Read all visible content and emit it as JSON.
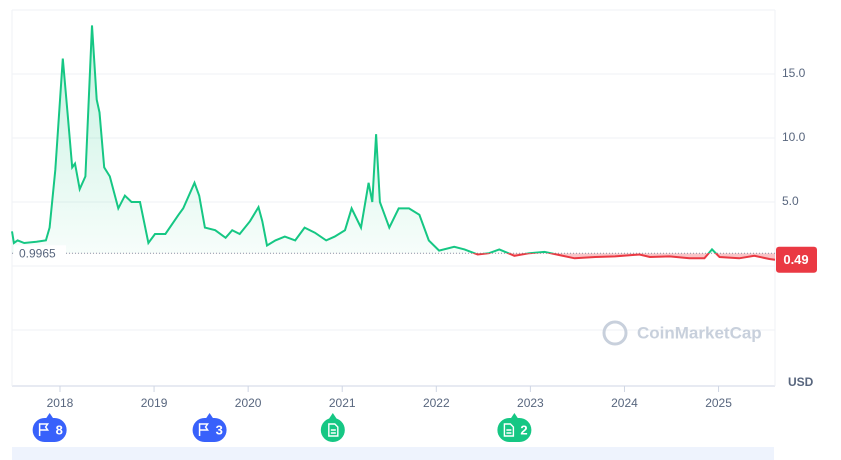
{
  "chart_data": {
    "type": "line",
    "x": [
      2017.49,
      2017.51,
      2017.55,
      2017.62,
      2017.75,
      2017.85,
      2017.89,
      2017.95,
      2018.03,
      2018.08,
      2018.13,
      2018.16,
      2018.21,
      2018.27,
      2018.34,
      2018.39,
      2018.42,
      2018.47,
      2018.53,
      2018.62,
      2018.69,
      2018.76,
      2018.85,
      2018.94,
      2019.01,
      2019.12,
      2019.26,
      2019.31,
      2019.43,
      2019.48,
      2019.54,
      2019.65,
      2019.76,
      2019.83,
      2019.91,
      2020.02,
      2020.11,
      2020.15,
      2020.2,
      2020.29,
      2020.39,
      2020.5,
      2020.6,
      2020.71,
      2020.83,
      2020.92,
      2021.03,
      2021.1,
      2021.2,
      2021.28,
      2021.32,
      2021.36,
      2021.4,
      2021.5,
      2021.6,
      2021.71,
      2021.82,
      2021.92,
      2022.03,
      2022.19,
      2022.3,
      2022.44,
      2022.56,
      2022.67,
      2022.83,
      2022.99,
      2023.15,
      2023.31,
      2023.47,
      2023.69,
      2023.9,
      2024.16,
      2024.27,
      2024.48,
      2024.69,
      2024.85,
      2024.93,
      2025.01,
      2025.22,
      2025.38,
      2025.54,
      2025.6
    ],
    "values": [
      2.7,
      1.8,
      2.0,
      1.8,
      1.9,
      2.0,
      3.0,
      7.5,
      16.2,
      12.0,
      7.7,
      8.0,
      6.0,
      7.0,
      18.8,
      13.0,
      12.0,
      7.7,
      7.0,
      4.5,
      5.5,
      5.0,
      5.0,
      1.8,
      2.5,
      2.5,
      4.0,
      4.5,
      6.5,
      5.5,
      3.0,
      2.8,
      2.2,
      2.8,
      2.5,
      3.5,
      4.6,
      3.5,
      1.6,
      2.0,
      2.3,
      2.0,
      3.0,
      2.6,
      2.0,
      2.3,
      2.8,
      4.5,
      3.0,
      6.5,
      5.0,
      10.3,
      5.0,
      3.0,
      4.5,
      4.5,
      4.0,
      2.0,
      1.2,
      1.5,
      1.3,
      0.9,
      1.0,
      1.3,
      0.8,
      1.0,
      1.1,
      0.85,
      0.6,
      0.7,
      0.75,
      0.9,
      0.7,
      0.75,
      0.6,
      0.6,
      1.3,
      0.7,
      0.6,
      0.8,
      0.55,
      0.49
    ],
    "color_up": "#16c784",
    "color_down": "#ea3943",
    "baseline": 0.9965,
    "xlim": [
      2017.49,
      2025.6
    ],
    "xticks": [
      2018,
      2019,
      2020,
      2021,
      2022,
      2023,
      2024,
      2025
    ],
    "ylim": [
      0,
      20
    ],
    "yticks": [
      {
        "value": 5,
        "label": "5.0"
      },
      {
        "value": 10,
        "label": "10.0"
      },
      {
        "value": 15,
        "label": "15.0"
      }
    ],
    "grid": true,
    "unit": "USD",
    "watermark": "CoinMarketCap",
    "events": [
      {
        "kind": "flag",
        "x": 2017.89,
        "label": "8"
      },
      {
        "kind": "flag",
        "x": 2019.59,
        "label": "3"
      },
      {
        "kind": "doc",
        "x": 2020.9
      },
      {
        "kind": "doc",
        "x": 2022.83,
        "label": "2"
      }
    ]
  }
}
